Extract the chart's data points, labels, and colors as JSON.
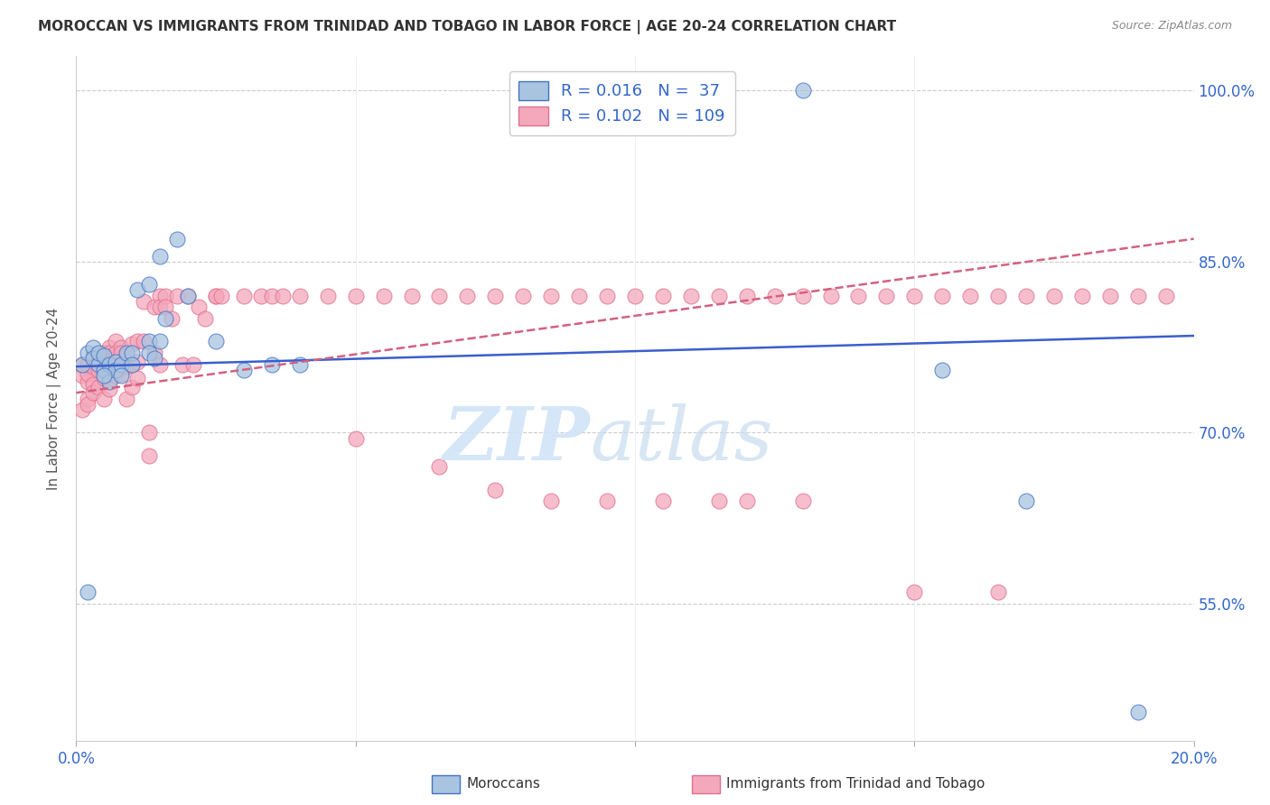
{
  "title": "MOROCCAN VS IMMIGRANTS FROM TRINIDAD AND TOBAGO IN LABOR FORCE | AGE 20-24 CORRELATION CHART",
  "source": "Source: ZipAtlas.com",
  "ylabel": "In Labor Force | Age 20-24",
  "yticks": [
    0.55,
    0.7,
    0.85,
    1.0
  ],
  "ytick_labels": [
    "55.0%",
    "70.0%",
    "85.0%",
    "100.0%"
  ],
  "legend_label1": "Moroccans",
  "legend_label2": "Immigrants from Trinidad and Tobago",
  "color_blue": "#A8C4E0",
  "color_pink": "#F4A8BC",
  "color_blue_dark": "#4472C4",
  "color_pink_dark": "#E07090",
  "blue_scatter_x": [
    0.001,
    0.002,
    0.003,
    0.003,
    0.004,
    0.004,
    0.005,
    0.005,
    0.006,
    0.006,
    0.007,
    0.007,
    0.008,
    0.009,
    0.01,
    0.011,
    0.013,
    0.013,
    0.014,
    0.015,
    0.016,
    0.002,
    0.005,
    0.008,
    0.01,
    0.013,
    0.015,
    0.018,
    0.02,
    0.025,
    0.03,
    0.035,
    0.04,
    0.13,
    0.155,
    0.17,
    0.19
  ],
  "blue_scatter_y": [
    0.76,
    0.77,
    0.775,
    0.765,
    0.76,
    0.77,
    0.755,
    0.768,
    0.745,
    0.76,
    0.762,
    0.755,
    0.76,
    0.77,
    0.77,
    0.825,
    0.78,
    0.77,
    0.765,
    0.78,
    0.8,
    0.56,
    0.75,
    0.75,
    0.76,
    0.83,
    0.855,
    0.87,
    0.82,
    0.78,
    0.755,
    0.76,
    0.76,
    1.0,
    0.755,
    0.64,
    0.455
  ],
  "pink_scatter_x": [
    0.001,
    0.001,
    0.001,
    0.002,
    0.002,
    0.002,
    0.002,
    0.002,
    0.003,
    0.003,
    0.003,
    0.003,
    0.004,
    0.004,
    0.004,
    0.004,
    0.005,
    0.005,
    0.005,
    0.005,
    0.005,
    0.006,
    0.006,
    0.006,
    0.006,
    0.007,
    0.007,
    0.007,
    0.007,
    0.008,
    0.008,
    0.008,
    0.009,
    0.009,
    0.009,
    0.01,
    0.01,
    0.01,
    0.011,
    0.011,
    0.011,
    0.012,
    0.012,
    0.013,
    0.013,
    0.014,
    0.014,
    0.015,
    0.015,
    0.015,
    0.016,
    0.016,
    0.017,
    0.018,
    0.019,
    0.02,
    0.021,
    0.022,
    0.023,
    0.025,
    0.025,
    0.026,
    0.03,
    0.033,
    0.035,
    0.037,
    0.04,
    0.045,
    0.05,
    0.055,
    0.06,
    0.065,
    0.07,
    0.075,
    0.08,
    0.085,
    0.09,
    0.095,
    0.1,
    0.105,
    0.11,
    0.115,
    0.12,
    0.125,
    0.13,
    0.135,
    0.14,
    0.145,
    0.15,
    0.155,
    0.16,
    0.165,
    0.17,
    0.175,
    0.18,
    0.185,
    0.19,
    0.195,
    0.05,
    0.065,
    0.075,
    0.085,
    0.095,
    0.105,
    0.115,
    0.12,
    0.13,
    0.15,
    0.165
  ],
  "pink_scatter_y": [
    0.75,
    0.72,
    0.76,
    0.745,
    0.752,
    0.73,
    0.76,
    0.725,
    0.758,
    0.768,
    0.742,
    0.735,
    0.762,
    0.768,
    0.74,
    0.755,
    0.77,
    0.758,
    0.748,
    0.73,
    0.76,
    0.775,
    0.77,
    0.748,
    0.738,
    0.78,
    0.76,
    0.75,
    0.77,
    0.775,
    0.77,
    0.752,
    0.768,
    0.758,
    0.73,
    0.76,
    0.778,
    0.74,
    0.78,
    0.762,
    0.748,
    0.815,
    0.78,
    0.68,
    0.7,
    0.81,
    0.77,
    0.82,
    0.81,
    0.76,
    0.82,
    0.81,
    0.8,
    0.82,
    0.76,
    0.82,
    0.76,
    0.81,
    0.8,
    0.82,
    0.82,
    0.82,
    0.82,
    0.82,
    0.82,
    0.82,
    0.82,
    0.82,
    0.82,
    0.82,
    0.82,
    0.82,
    0.82,
    0.82,
    0.82,
    0.82,
    0.82,
    0.82,
    0.82,
    0.82,
    0.82,
    0.82,
    0.82,
    0.82,
    0.82,
    0.82,
    0.82,
    0.82,
    0.82,
    0.82,
    0.82,
    0.82,
    0.82,
    0.82,
    0.82,
    0.82,
    0.82,
    0.82,
    0.695,
    0.67,
    0.65,
    0.64,
    0.64,
    0.64,
    0.64,
    0.64,
    0.64,
    0.56,
    0.56
  ],
  "xlim": [
    0.0,
    0.2
  ],
  "ylim": [
    0.43,
    1.03
  ],
  "blue_line_x": [
    0.0,
    0.2
  ],
  "blue_line_y": [
    0.758,
    0.785
  ],
  "pink_line_x": [
    0.0,
    0.2
  ],
  "pink_line_y": [
    0.735,
    0.87
  ]
}
